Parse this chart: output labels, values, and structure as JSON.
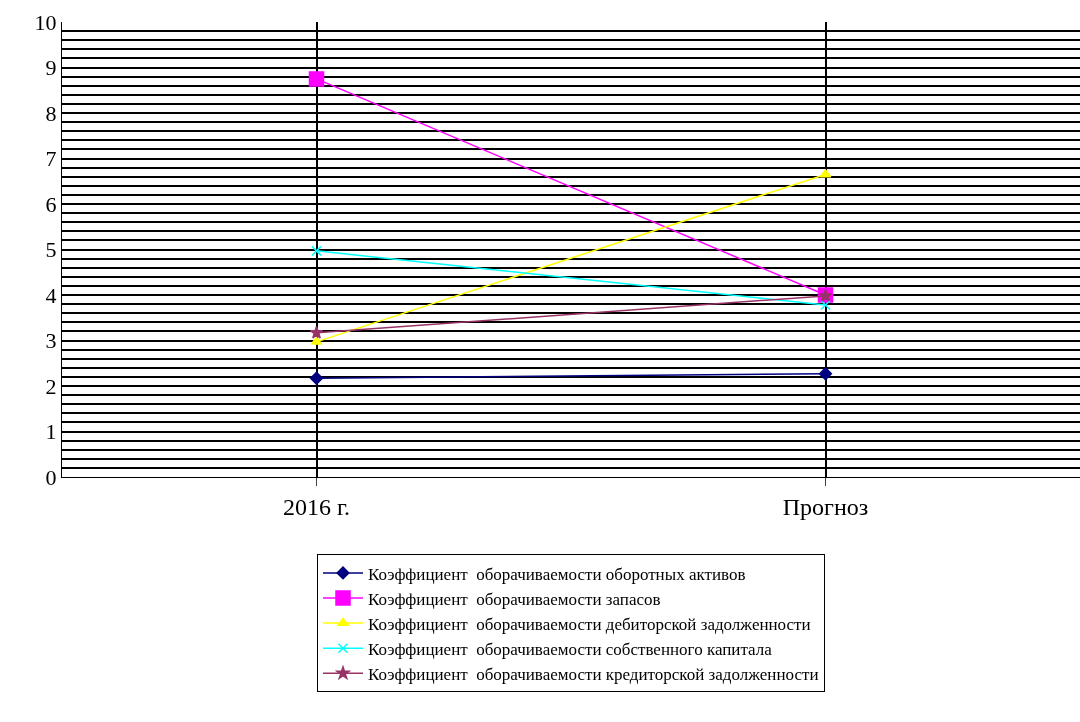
{
  "chart_data": {
    "type": "line",
    "categories": [
      "2016 г.",
      "Прогноз"
    ],
    "series": [
      {
        "name": "Коэффициент  оборачиваемости оборотных активов",
        "color": "#000080",
        "marker": "diamond",
        "values": [
          2.17,
          2.27
        ]
      },
      {
        "name": "Коэффициент  оборачиваемости запасов",
        "color": "#ff00ff",
        "marker": "square",
        "values": [
          8.75,
          4.0
        ]
      },
      {
        "name": "Коэффициент  оборачиваемости дебиторской задолженности",
        "color": "#ffff00",
        "marker": "triangle",
        "values": [
          2.97,
          6.65
        ]
      },
      {
        "name": "Коэффициент  оборачиваемости собственного капитала",
        "color": "#00ffff",
        "marker": "cross",
        "values": [
          4.97,
          3.78
        ]
      },
      {
        "name": "Коэффициент  оборачиваемости кредиторской задолженности",
        "color": "#993366",
        "marker": "star",
        "values": [
          3.17,
          3.98
        ]
      }
    ],
    "ylim": [
      0,
      10
    ],
    "yticks": [
      0,
      {
        "value": 0.2,
        "label": null
      },
      {
        "value": 0.4,
        "label": null
      },
      {
        "value": 0.6,
        "label": null
      },
      {
        "value": 0.8,
        "label": null
      },
      1,
      {
        "value": 1.2,
        "label": null
      },
      {
        "value": 1.4,
        "label": null
      },
      {
        "value": 1.6,
        "label": null
      },
      {
        "value": 1.8,
        "label": null
      },
      2,
      {
        "value": 2.2,
        "label": null
      },
      {
        "value": 2.4,
        "label": null
      },
      {
        "value": 2.6,
        "label": null
      },
      {
        "value": 2.8,
        "label": null
      },
      3,
      {
        "value": 3.2,
        "label": null
      },
      {
        "value": 3.4,
        "label": null
      },
      {
        "value": 3.6,
        "label": null
      },
      {
        "value": 3.8,
        "label": null
      },
      4,
      {
        "value": 4.2,
        "label": null
      },
      {
        "value": 4.4,
        "label": null
      },
      {
        "value": 4.6,
        "label": null
      },
      {
        "value": 4.8,
        "label": null
      },
      5,
      {
        "value": 5.2,
        "label": null
      },
      {
        "value": 5.4,
        "label": null
      },
      {
        "value": 5.6,
        "label": null
      },
      {
        "value": 5.8,
        "label": null
      },
      6,
      {
        "value": 6.2,
        "label": null
      },
      {
        "value": 6.4,
        "label": null
      },
      {
        "value": 6.6,
        "label": null
      },
      {
        "value": 6.8,
        "label": null
      },
      7,
      {
        "value": 7.2,
        "label": null
      },
      {
        "value": 7.4,
        "label": null
      },
      {
        "value": 7.6,
        "label": null
      },
      {
        "value": 7.8,
        "label": null
      },
      8,
      {
        "value": 8.2,
        "label": null
      },
      {
        "value": 8.4,
        "label": null
      },
      {
        "value": 8.6,
        "label": null
      },
      {
        "value": 8.8,
        "label": null
      },
      9,
      {
        "value": 9.2,
        "label": null
      },
      {
        "value": 9.4,
        "label": null
      },
      {
        "value": 9.6,
        "label": null
      },
      {
        "value": 9.8,
        "label": null
      },
      10
    ],
    "grid": true,
    "legend": "bottom",
    "line_style": "solid"
  }
}
